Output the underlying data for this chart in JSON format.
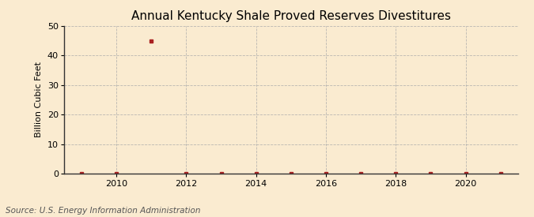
{
  "title": "Annual Kentucky Shale Proved Reserves Divestitures",
  "ylabel": "Billion Cubic Feet",
  "source": "Source: U.S. Energy Information Administration",
  "years": [
    2009,
    2010,
    2011,
    2012,
    2013,
    2014,
    2015,
    2016,
    2017,
    2018,
    2019,
    2020,
    2021
  ],
  "values": [
    0,
    0,
    45,
    0,
    0,
    0,
    0,
    0,
    0,
    0,
    0,
    0,
    0
  ],
  "xlim": [
    2008.5,
    2021.5
  ],
  "ylim": [
    0,
    50
  ],
  "yticks": [
    0,
    10,
    20,
    30,
    40,
    50
  ],
  "xticks": [
    2010,
    2012,
    2014,
    2016,
    2018,
    2020
  ],
  "marker_color": "#aa2222",
  "marker_size": 3,
  "background_color": "#faebd0",
  "grid_color": "#aaaaaa",
  "title_fontsize": 11,
  "label_fontsize": 8,
  "tick_fontsize": 8,
  "source_fontsize": 7.5
}
